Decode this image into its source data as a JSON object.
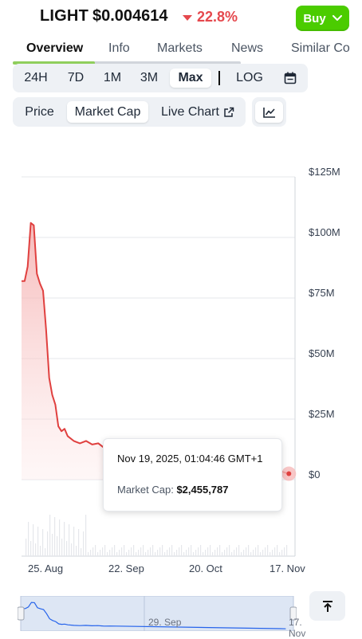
{
  "header": {
    "ticker": "LIGHT",
    "price": "$0.004614",
    "change": "22.8%",
    "change_color": "#e5484d",
    "buy_label": "Buy"
  },
  "tabs": [
    {
      "label": "Overview",
      "active": true
    },
    {
      "label": "Info"
    },
    {
      "label": "Markets"
    },
    {
      "label": "News"
    },
    {
      "label": "Similar Co"
    }
  ],
  "ranges": [
    {
      "label": "24H"
    },
    {
      "label": "7D"
    },
    {
      "label": "1M"
    },
    {
      "label": "3M"
    },
    {
      "label": "Max",
      "active": true
    }
  ],
  "log_label": "LOG",
  "chart_types": [
    {
      "label": "Price"
    },
    {
      "label": "Market Cap",
      "active": true
    },
    {
      "label": "Live Chart"
    }
  ],
  "icons": {
    "calendar": "calendar-icon",
    "external": "external-link-icon",
    "line_chart": "line-chart-icon",
    "scroll_top": "arrow-up-to-line-icon",
    "down": "caret-down-icon",
    "buy_chevron": "chevron-down-icon"
  },
  "colors": {
    "accent_green": "#4bcc00",
    "line_red": "#e0403f"
  },
  "chart_data": {
    "type": "area",
    "ylabel": "",
    "y_ticks": [
      "$125M",
      "$100M",
      "$75M",
      "$50M",
      "$25M",
      "$0"
    ],
    "ylim": [
      0,
      125000000
    ],
    "x_ticks": [
      "25. Aug",
      "22. Sep",
      "20. Oct",
      "17. Nov"
    ],
    "series": [
      {
        "x": [
          "2025-08-24",
          "2025-08-25",
          "2025-08-26",
          "2025-08-27",
          "2025-08-28",
          "2025-08-29",
          "2025-08-30",
          "2025-08-31",
          "2025-09-01",
          "2025-09-02",
          "2025-09-03",
          "2025-09-04",
          "2025-09-05",
          "2025-09-06",
          "2025-09-07",
          "2025-09-08",
          "2025-09-10",
          "2025-09-12",
          "2025-09-14",
          "2025-09-16",
          "2025-09-18",
          "2025-09-20",
          "2025-09-22",
          "2025-11-17",
          "2025-11-19"
        ],
        "values": [
          82000000,
          82000000,
          88000000,
          106000000,
          105000000,
          85000000,
          81000000,
          78000000,
          62000000,
          42000000,
          35000000,
          31000000,
          22000000,
          20000000,
          21000000,
          18000000,
          16000000,
          15000000,
          16000000,
          14500000,
          15000000,
          13000000,
          13500000,
          3200000,
          2455787
        ]
      }
    ],
    "tooltip": {
      "date": "Nov 19, 2025, 01:04:46 GMT+1",
      "label": "Market Cap:",
      "value": "$2,455,787"
    }
  },
  "navigator": {
    "labels": [
      "29. Sep",
      "17. Nov"
    ]
  }
}
